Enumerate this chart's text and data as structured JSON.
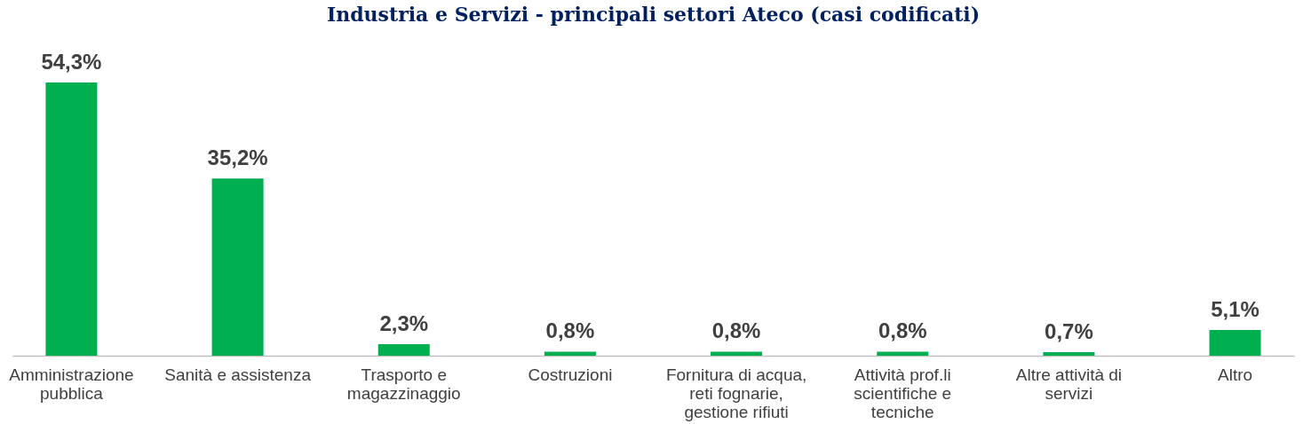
{
  "chart_data": {
    "type": "bar",
    "title": "Industria e Servizi - principali settori Ateco (casi codificati)",
    "categories": [
      "Amministrazione pubblica",
      "Sanità e assistenza",
      "Trasporto e magazzinaggio",
      "Costruzioni",
      "Fornitura di acqua, reti fognarie, gestione rifiuti",
      "Attività prof.li scientifiche e tecniche",
      "Altre attività di servizi",
      "Altro"
    ],
    "values": [
      54.3,
      35.2,
      2.3,
      0.8,
      0.8,
      0.8,
      0.7,
      5.1
    ],
    "value_labels": [
      "54,3%",
      "35,2%",
      "2,3%",
      "0,8%",
      "0,8%",
      "0,8%",
      "0,7%",
      "5,1%"
    ],
    "color": "#00b050",
    "tick_labels": "x",
    "grid": false
  }
}
